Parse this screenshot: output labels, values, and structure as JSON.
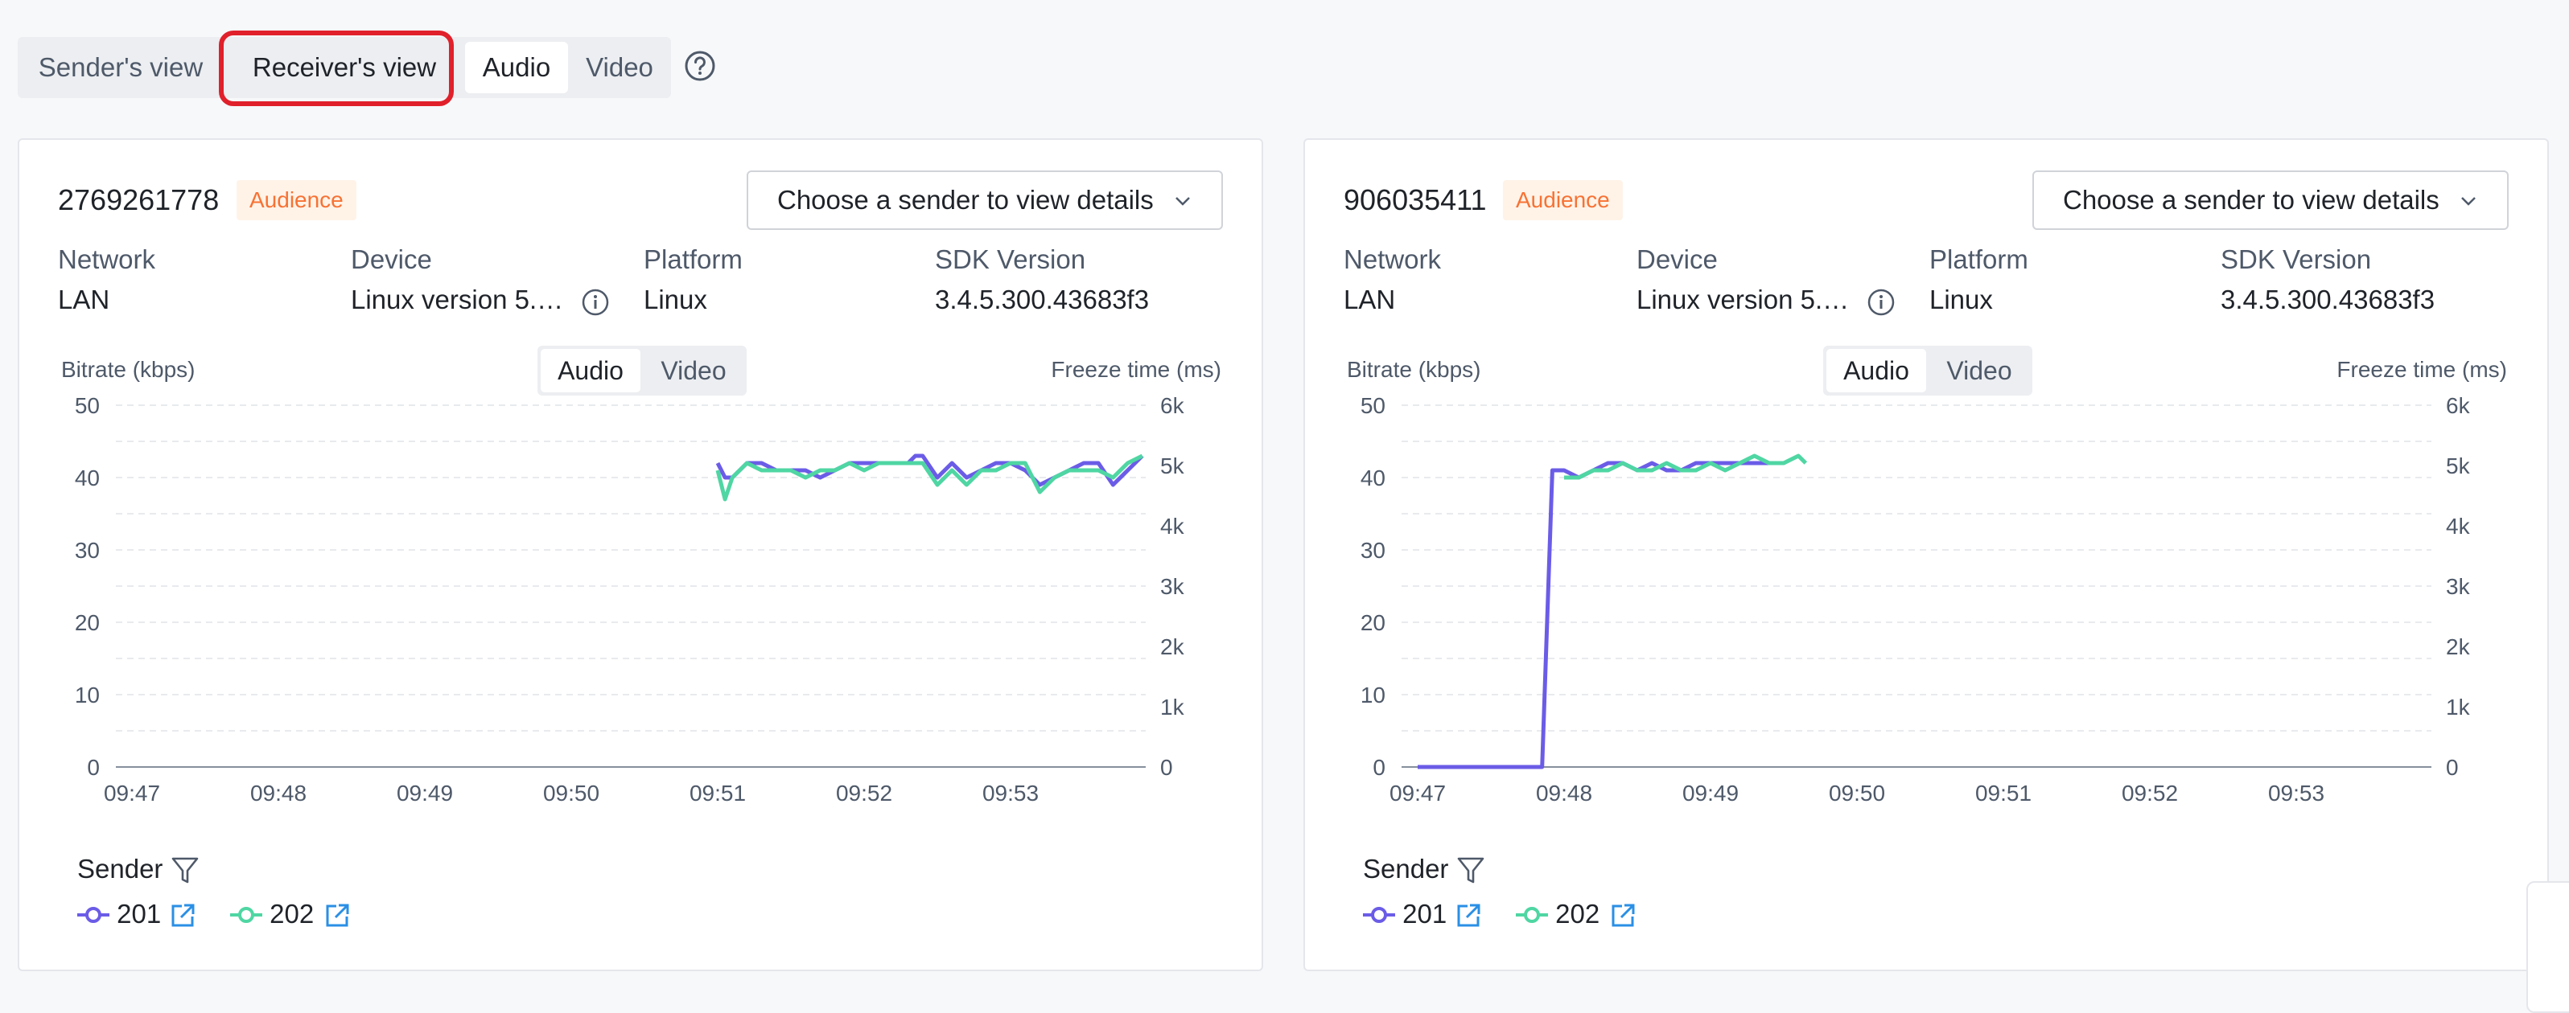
{
  "view_tabs": {
    "sender": "Sender's view",
    "receiver": "Receiver's view",
    "audio": "Audio",
    "video": "Video"
  },
  "labels": {
    "network": "Network",
    "device": "Device",
    "platform": "Platform",
    "sdk": "SDK Version",
    "bitrate": "Bitrate (kbps)",
    "freeze": "Freeze time (ms)",
    "audio": "Audio",
    "video": "Video",
    "sender": "Sender",
    "choose_sender": "Choose a sender to view details"
  },
  "cards": [
    {
      "uid": "2769261778",
      "role": "Audience",
      "network": "LAN",
      "device": "Linux version 5.…",
      "platform": "Linux",
      "sdk": "3.4.5.300.43683f3",
      "legend": [
        {
          "name": "201"
        },
        {
          "name": "202"
        }
      ]
    },
    {
      "uid": "906035411",
      "role": "Audience",
      "network": "LAN",
      "device": "Linux version 5.…",
      "platform": "Linux",
      "sdk": "3.4.5.300.43683f3",
      "legend": [
        {
          "name": "201"
        },
        {
          "name": "202"
        }
      ]
    }
  ],
  "colors": {
    "s201": "#6b5ce7",
    "s202": "#4fd6a3",
    "accent": "#e0202b",
    "badge": "#f77234"
  },
  "chart_data": [
    {
      "type": "line",
      "ylabel": "Bitrate (kbps)",
      "y2label": "Freeze time (ms)",
      "x_ticks": [
        "09:47",
        "09:48",
        "09:49",
        "09:50",
        "09:51",
        "09:52",
        "09:53"
      ],
      "y_ticks": [
        "0",
        "10",
        "20",
        "30",
        "40",
        "50"
      ],
      "y2_ticks": [
        "0",
        "1k",
        "2k",
        "3k",
        "4k",
        "5k",
        "6k"
      ],
      "ylim": [
        0,
        50
      ],
      "xlim": [
        0,
        7.1
      ],
      "series": [
        {
          "name": "201",
          "x": [
            4.0,
            4.05,
            4.1,
            4.2,
            4.3,
            4.4,
            4.5,
            4.6,
            4.7,
            4.8,
            4.9,
            5.0,
            5.1,
            5.2,
            5.3,
            5.35,
            5.4,
            5.5,
            5.6,
            5.7,
            5.8,
            5.9,
            6.0,
            6.1,
            6.2,
            6.3,
            6.4,
            6.5,
            6.6,
            6.7,
            6.8,
            6.9
          ],
          "y": [
            42,
            40,
            40,
            42,
            42,
            41,
            41,
            41,
            40,
            41,
            42,
            42,
            42,
            42,
            42,
            43,
            43,
            40,
            42,
            40,
            41,
            42,
            42,
            41,
            39,
            40,
            41,
            42,
            42,
            39,
            41,
            43
          ]
        },
        {
          "name": "202",
          "x": [
            4.0,
            4.05,
            4.1,
            4.2,
            4.3,
            4.4,
            4.5,
            4.6,
            4.7,
            4.8,
            4.9,
            5.0,
            5.1,
            5.2,
            5.3,
            5.35,
            5.4,
            5.5,
            5.6,
            5.7,
            5.8,
            5.9,
            6.0,
            6.1,
            6.2,
            6.3,
            6.4,
            6.5,
            6.6,
            6.7,
            6.8,
            6.9
          ],
          "y": [
            41,
            37,
            40,
            42,
            41,
            41,
            41,
            40,
            41,
            41,
            42,
            41,
            42,
            42,
            42,
            42,
            42,
            39,
            41,
            39,
            41,
            41,
            42,
            42,
            38,
            40,
            41,
            41,
            41,
            40,
            42,
            43
          ]
        }
      ]
    },
    {
      "type": "line",
      "ylabel": "Bitrate (kbps)",
      "y2label": "Freeze time (ms)",
      "x_ticks": [
        "09:47",
        "09:48",
        "09:49",
        "09:50",
        "09:51",
        "09:52",
        "09:53"
      ],
      "y_ticks": [
        "0",
        "10",
        "20",
        "30",
        "40",
        "50"
      ],
      "y2_ticks": [
        "0",
        "1k",
        "2k",
        "3k",
        "4k",
        "5k",
        "6k"
      ],
      "ylim": [
        0,
        50
      ],
      "xlim": [
        0,
        7.1
      ],
      "series": [
        {
          "name": "201",
          "x": [
            0,
            0.85,
            0.92,
            1.0,
            1.1,
            1.2,
            1.3,
            1.4,
            1.5,
            1.6,
            1.7,
            1.8,
            1.9,
            2.0,
            2.1,
            2.2,
            2.3,
            2.4
          ],
          "y": [
            0,
            0,
            41,
            41,
            40,
            41,
            42,
            42,
            41,
            42,
            41,
            41,
            42,
            42,
            42,
            42,
            42,
            42
          ]
        },
        {
          "name": "202",
          "x": [
            1.0,
            1.1,
            1.2,
            1.3,
            1.4,
            1.5,
            1.6,
            1.7,
            1.8,
            1.9,
            2.0,
            2.1,
            2.2,
            2.3,
            2.4,
            2.5,
            2.6,
            2.65
          ],
          "y": [
            40,
            40,
            41,
            41,
            42,
            41,
            41,
            42,
            41,
            41,
            42,
            41,
            42,
            43,
            42,
            42,
            43,
            42
          ]
        }
      ]
    }
  ]
}
